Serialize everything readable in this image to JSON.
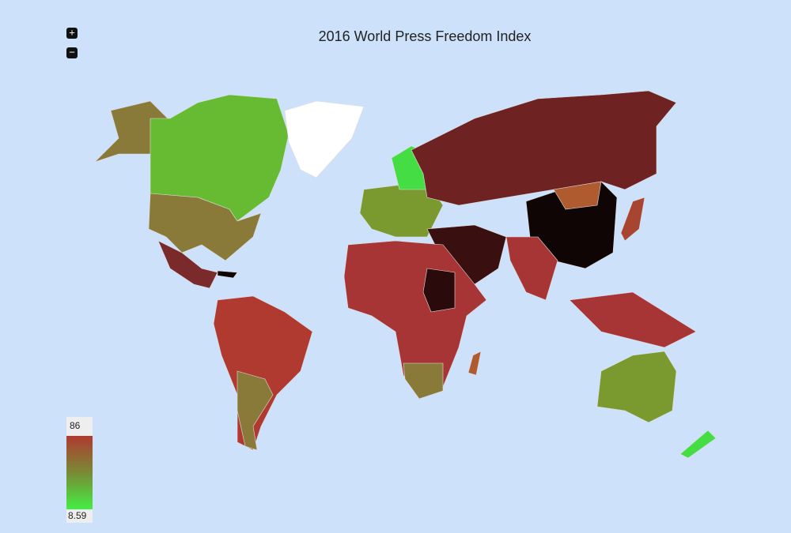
{
  "title": "2016 World Press Freedom Index",
  "controls": {
    "zoom_in": "+",
    "zoom_out": "−"
  },
  "legend": {
    "max_label": "86",
    "min_label": "8.59",
    "max_color": "#b03a30",
    "mid_color": "#7a8a35",
    "min_color": "#44ee44"
  }
}
